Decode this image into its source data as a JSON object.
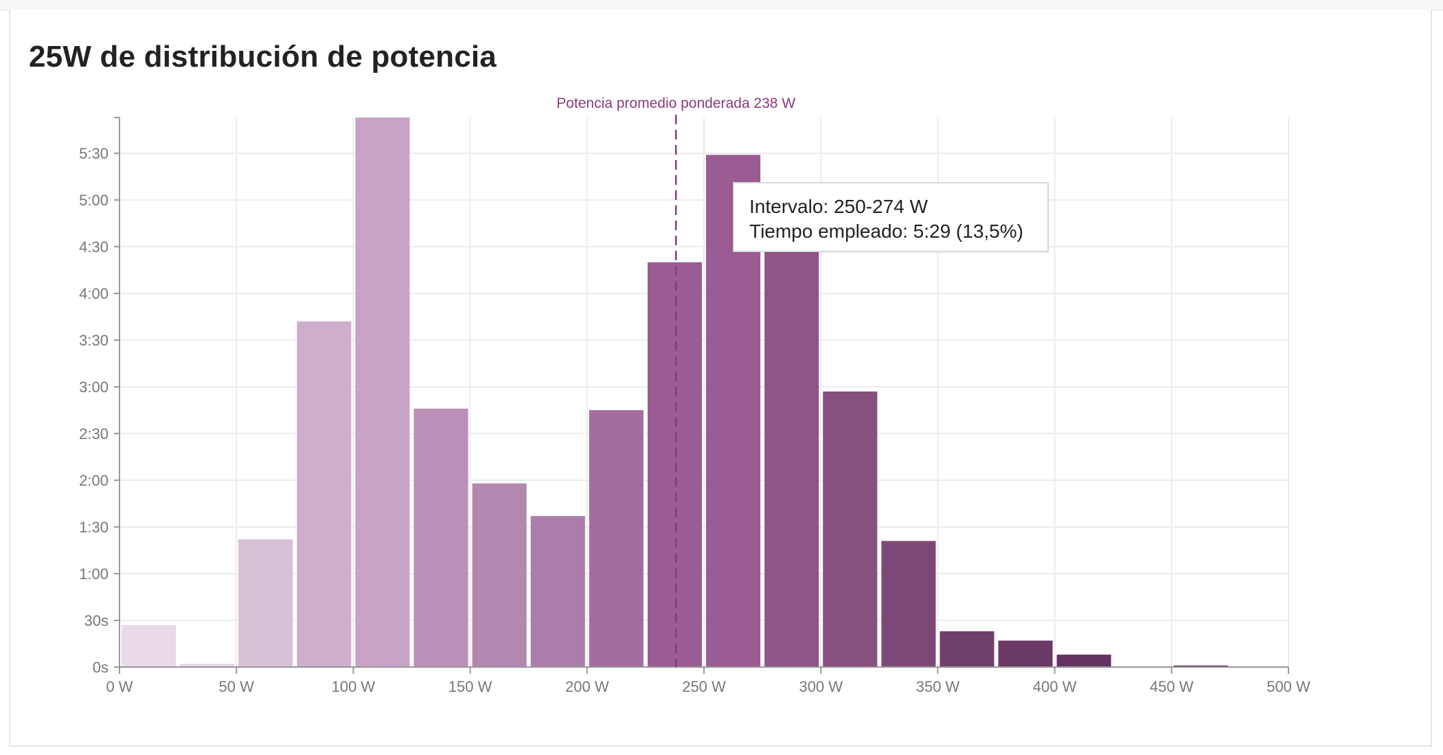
{
  "card": {
    "title": "25W de distribución de potencia"
  },
  "tooltip": {
    "line1": "Intervalo: 250-274 W",
    "line2": "Tiempo empleado: 5:29 (13,5%)"
  },
  "chart_data": {
    "type": "bar",
    "title": "25W de distribución de potencia",
    "xlabel": "",
    "ylabel": "",
    "bin_width": 25,
    "xlim": [
      0,
      500
    ],
    "ylim_seconds": [
      0,
      353
    ],
    "x_ticks": [
      0,
      50,
      100,
      150,
      200,
      250,
      300,
      350,
      400,
      450,
      500
    ],
    "x_tick_labels": [
      "0 W",
      "50 W",
      "100 W",
      "150 W",
      "200 W",
      "250 W",
      "300 W",
      "350 W",
      "400 W",
      "450 W",
      "500 W"
    ],
    "y_ticks_seconds": [
      0,
      30,
      60,
      90,
      120,
      150,
      180,
      210,
      240,
      270,
      300,
      330
    ],
    "y_tick_labels": [
      "0s",
      "30s",
      "1:00",
      "1:30",
      "2:00",
      "2:30",
      "3:00",
      "3:30",
      "4:00",
      "4:30",
      "5:00",
      "5:30"
    ],
    "categories": [
      "0-24 W",
      "25-49 W",
      "50-74 W",
      "75-99 W",
      "100-124 W",
      "125-149 W",
      "150-174 W",
      "175-199 W",
      "200-224 W",
      "225-249 W",
      "250-274 W",
      "275-299 W",
      "300-324 W",
      "325-349 W",
      "350-374 W",
      "375-399 W",
      "400-424 W",
      "425-449 W",
      "450-474 W",
      "475-499 W"
    ],
    "values_seconds": [
      27,
      2,
      82,
      222,
      353,
      166,
      118,
      97,
      165,
      260,
      329,
      300,
      177,
      81,
      23,
      17,
      8,
      0,
      1,
      0
    ],
    "colors": [
      "#e8dbe7",
      "#e3d3e3",
      "#d8c0d7",
      "#cfadcc",
      "#c8a3c6",
      "#bc8fb9",
      "#b388b0",
      "#ac7daa",
      "#a36c9e",
      "#995c93",
      "#9a5c93",
      "#8f5587",
      "#86507f",
      "#7e4876",
      "#713f6b",
      "#6a3965",
      "#633460",
      "#5e2f5b",
      "#5e2f5b",
      "#5e2f5b"
    ],
    "grid": true,
    "reference_line": {
      "x": 238,
      "label": "Potencia promedio ponderada 238 W",
      "color": "#8a3a7e",
      "style": "dashed"
    },
    "highlighted_bin": "250-274 W"
  }
}
